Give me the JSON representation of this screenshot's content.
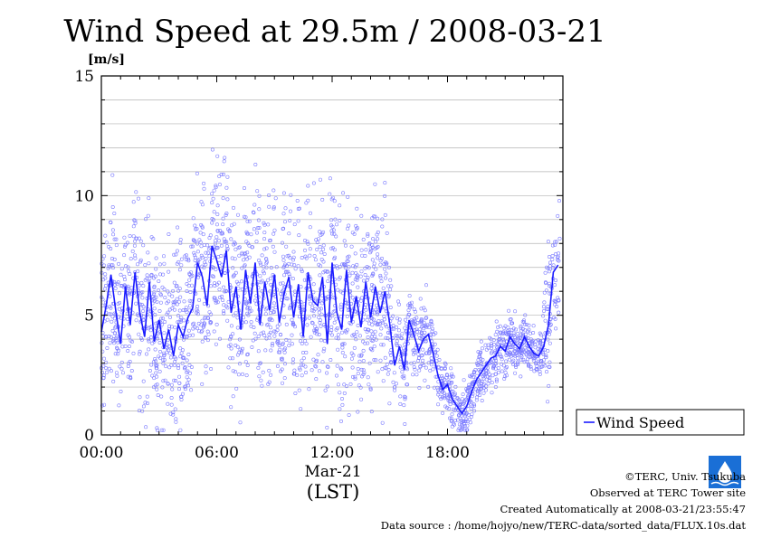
{
  "chart_data": {
    "type": "scatter",
    "title": "Wind Speed at 29.5m / 2008-03-21",
    "ylabel": "[m/s]",
    "xlabel_date": "Mar-21",
    "xlabel_unit": "(LST)",
    "ylim": [
      0,
      15
    ],
    "xlim_hours": [
      0,
      24
    ],
    "yticks": [
      0,
      5,
      10,
      15
    ],
    "xticks": [
      {
        "hour": 0,
        "label": "00:00"
      },
      {
        "hour": 6,
        "label": "06:00"
      },
      {
        "hour": 12,
        "label": "12:00"
      },
      {
        "hour": 18,
        "label": "18:00"
      }
    ],
    "grid": true,
    "legend_position": "right",
    "series": [
      {
        "name": "Wind Speed",
        "mark": "line",
        "color": "#1a1aff",
        "x_hours": [
          0.0,
          0.25,
          0.5,
          0.75,
          1.0,
          1.25,
          1.5,
          1.75,
          2.0,
          2.25,
          2.5,
          2.75,
          3.0,
          3.25,
          3.5,
          3.75,
          4.0,
          4.25,
          4.5,
          4.75,
          5.0,
          5.25,
          5.5,
          5.75,
          6.0,
          6.25,
          6.5,
          6.75,
          7.0,
          7.25,
          7.5,
          7.75,
          8.0,
          8.25,
          8.5,
          8.75,
          9.0,
          9.25,
          9.5,
          9.75,
          10.0,
          10.25,
          10.5,
          10.75,
          11.0,
          11.25,
          11.5,
          11.75,
          12.0,
          12.25,
          12.5,
          12.75,
          13.0,
          13.25,
          13.5,
          13.75,
          14.0,
          14.25,
          14.5,
          14.75,
          15.0,
          15.25,
          15.5,
          15.75,
          16.0,
          16.25,
          16.5,
          16.75,
          17.0,
          17.25,
          17.5,
          17.75,
          18.0,
          18.25,
          18.5,
          18.75,
          19.0,
          19.25,
          19.5,
          19.75,
          20.0,
          20.25,
          20.5,
          20.75,
          21.0,
          21.25,
          21.5,
          21.75,
          22.0,
          22.25,
          22.5,
          22.75,
          23.0,
          23.25,
          23.5,
          23.75
        ],
        "values": [
          4.3,
          5.4,
          6.7,
          5.2,
          3.8,
          6.2,
          4.6,
          6.8,
          5.1,
          4.1,
          6.4,
          3.9,
          4.8,
          3.6,
          4.4,
          3.3,
          4.6,
          4.1,
          4.9,
          5.3,
          7.2,
          6.6,
          5.4,
          7.9,
          7.3,
          6.6,
          7.7,
          5.1,
          6.2,
          4.4,
          6.9,
          5.5,
          7.2,
          4.6,
          6.4,
          5.2,
          6.7,
          4.7,
          5.9,
          6.6,
          4.9,
          6.3,
          4.1,
          6.8,
          5.6,
          5.4,
          6.6,
          3.8,
          7.2,
          5.1,
          4.4,
          6.9,
          4.7,
          5.8,
          4.5,
          6.4,
          4.9,
          6.2,
          5.1,
          6.0,
          4.6,
          2.9,
          3.7,
          2.7,
          4.8,
          4.2,
          3.5,
          4.0,
          4.2,
          3.4,
          2.5,
          1.9,
          2.1,
          1.5,
          1.2,
          0.9,
          1.2,
          1.8,
          2.3,
          2.6,
          2.9,
          3.2,
          3.3,
          3.7,
          3.5,
          4.1,
          3.8,
          3.6,
          4.1,
          3.7,
          3.4,
          3.3,
          3.7,
          4.6,
          6.8,
          7.1
        ]
      }
    ]
  },
  "legend": {
    "label": "Wind Speed"
  },
  "footer": {
    "copyright": "©TERC, Univ. Tsukuba",
    "site": "Observed at TERC Tower site",
    "created": "Created Automatically at 2008-03-21/23:55:47",
    "source": "Data source : /home/hojyo/new/TERC-data/sorted_data/FLUX.10s.dat"
  },
  "logo": {
    "text": "TERC",
    "color": "#1a6fd6"
  }
}
